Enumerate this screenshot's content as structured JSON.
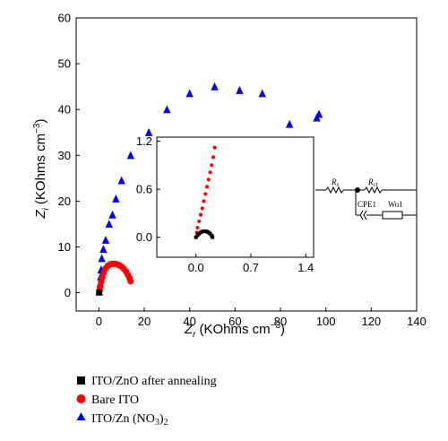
{
  "chart_data": {
    "type": "scatter",
    "title": "",
    "xlabel": {
      "symbol": "Z",
      "sub": "r",
      "units": "(KOhms cm",
      "sup": "−3",
      "close": ")"
    },
    "ylabel": {
      "symbol": "Z",
      "sub": "i",
      "units": "(KOhms cm",
      "sup": "−3",
      "close": ")"
    },
    "xlim": [
      -10,
      140
    ],
    "ylim": [
      -4,
      60
    ],
    "xticks": [
      "0",
      "20",
      "40",
      "60",
      "80",
      "100",
      "120",
      "140"
    ],
    "yticks": [
      "0",
      "10",
      "20",
      "30",
      "40",
      "50",
      "60"
    ],
    "grid": false,
    "legend_position": "bottom-left",
    "series": [
      {
        "name": "ITO/ZnO after annealing",
        "marker": "square",
        "color": "#000000",
        "points": [
          [
            0.05,
            0.02
          ],
          [
            0.15,
            0.05
          ]
        ]
      },
      {
        "name": "Bare ITO",
        "marker": "circle",
        "color": "#ff0000",
        "points": [
          [
            0.3,
            0.5
          ],
          [
            0.5,
            1.2
          ],
          [
            1.0,
            2.3
          ],
          [
            1.5,
            3.3
          ],
          [
            2.2,
            4.4
          ],
          [
            3.0,
            5.3
          ],
          [
            4.0,
            5.9
          ],
          [
            5.0,
            6.2
          ],
          [
            6.0,
            6.3
          ],
          [
            7.0,
            6.3
          ],
          [
            8.0,
            6.2
          ],
          [
            9.0,
            6.0
          ],
          [
            10.0,
            5.7
          ],
          [
            11.0,
            5.2
          ],
          [
            12.0,
            4.6
          ],
          [
            12.8,
            3.9
          ],
          [
            13.5,
            3.2
          ],
          [
            14.0,
            2.5
          ]
        ]
      },
      {
        "name": "ITO/Zn (NO3)2",
        "marker": "triangle",
        "color": "#0000ff",
        "points": [
          [
            0.2,
            0.2
          ],
          [
            0.4,
            1.0
          ],
          [
            0.6,
            2.0
          ],
          [
            0.8,
            3.5
          ],
          [
            1.0,
            5.0
          ],
          [
            1.3,
            7.5
          ],
          [
            2.0,
            9.5
          ],
          [
            3.0,
            11.5
          ],
          [
            4.5,
            15.0
          ],
          [
            6.0,
            17.0
          ],
          [
            7.5,
            20.5
          ],
          [
            10.0,
            24.5
          ],
          [
            14.0,
            30.0
          ],
          [
            22.0,
            35.0
          ],
          [
            30.0,
            40.0
          ],
          [
            40.0,
            43.5
          ],
          [
            51.0,
            45.0
          ],
          [
            62.0,
            44.2
          ],
          [
            72.0,
            43.5
          ],
          [
            84.0,
            36.8
          ],
          [
            96.0,
            38.2
          ],
          [
            97.0,
            39.0
          ]
        ]
      }
    ],
    "inset": {
      "xlim": [
        -0.5,
        1.5
      ],
      "ylim": [
        -0.25,
        1.25
      ],
      "xticks": [
        "0.0",
        "0.7",
        "1.4"
      ],
      "yticks": [
        "0.0",
        "0.6",
        "1.2"
      ],
      "series": [
        {
          "name": "ITO/ZnO after annealing",
          "marker": "square",
          "color": "#000000",
          "points": [
            [
              0.0,
              0.0
            ],
            [
              0.02,
              0.025
            ],
            [
              0.04,
              0.045
            ],
            [
              0.06,
              0.06
            ],
            [
              0.08,
              0.07
            ],
            [
              0.1,
              0.075
            ],
            [
              0.12,
              0.075
            ],
            [
              0.14,
              0.07
            ],
            [
              0.16,
              0.06
            ],
            [
              0.18,
              0.045
            ],
            [
              0.2,
              0.02
            ],
            [
              0.21,
              0.0
            ]
          ]
        },
        {
          "name": "Bare ITO",
          "marker": "circle",
          "color": "#ff0000",
          "points": [
            [
              0.0,
              0.0
            ],
            [
              0.01,
              0.06
            ],
            [
              0.02,
              0.12
            ],
            [
              0.04,
              0.2
            ],
            [
              0.06,
              0.28
            ],
            [
              0.08,
              0.36
            ],
            [
              0.1,
              0.45
            ],
            [
              0.12,
              0.54
            ],
            [
              0.14,
              0.63
            ],
            [
              0.16,
              0.72
            ],
            [
              0.18,
              0.81
            ],
            [
              0.2,
              0.9
            ],
            [
              0.22,
              1.0
            ],
            [
              0.24,
              1.12
            ]
          ]
        }
      ]
    },
    "circuit_labels": {
      "rs": "R",
      "rs_sub": "s",
      "rct": "R",
      "rct_sub": "ct",
      "cpe": "CPE1",
      "wo": "Wo1"
    }
  }
}
